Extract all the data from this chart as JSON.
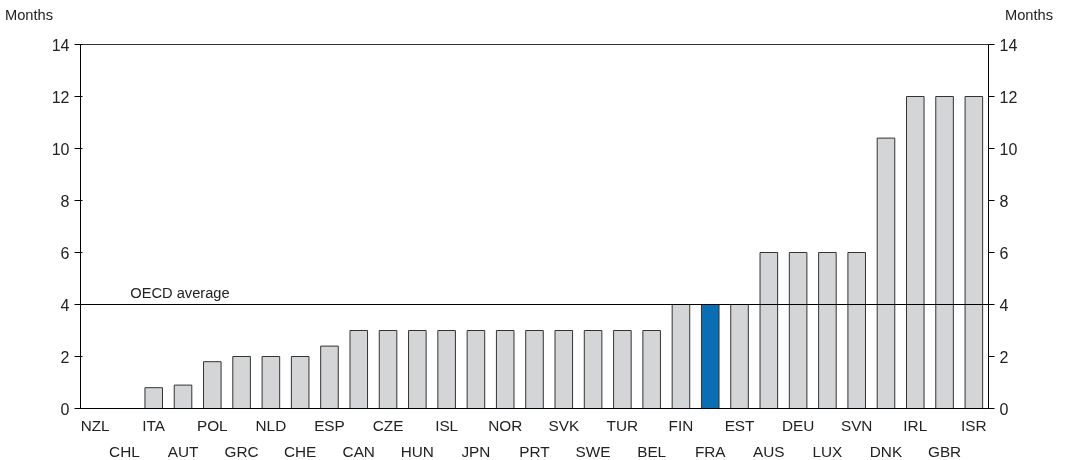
{
  "chart_data": {
    "type": "bar",
    "ylabel": "Months",
    "y2label": "Months",
    "categories": [
      "NZL",
      "CHL",
      "ITA",
      "AUT",
      "POL",
      "GRC",
      "NLD",
      "CHE",
      "ESP",
      "CAN",
      "CZE",
      "HUN",
      "ISL",
      "JPN",
      "NOR",
      "PRT",
      "SVK",
      "SWE",
      "TUR",
      "BEL",
      "FIN",
      "FRA",
      "EST",
      "AUS",
      "DEU",
      "LUX",
      "SVN",
      "DNK",
      "IRL",
      "GBR",
      "ISR"
    ],
    "values": [
      0,
      0,
      0.8,
      0.9,
      1.8,
      2,
      2,
      2,
      2.4,
      3,
      3,
      3,
      3,
      3,
      3,
      3,
      3,
      3,
      3,
      3,
      4,
      4,
      4,
      6,
      6,
      6,
      6,
      10.4,
      12,
      12,
      12
    ],
    "colors": [
      "#d4d5d7",
      "#d4d5d7",
      "#d4d5d7",
      "#d4d5d7",
      "#d4d5d7",
      "#d4d5d7",
      "#d4d5d7",
      "#d4d5d7",
      "#d4d5d7",
      "#d4d5d7",
      "#d4d5d7",
      "#d4d5d7",
      "#d4d5d7",
      "#d4d5d7",
      "#d4d5d7",
      "#d4d5d7",
      "#d4d5d7",
      "#d4d5d7",
      "#d4d5d7",
      "#d4d5d7",
      "#d4d5d7",
      "#0a6eb4",
      "#d4d5d7",
      "#d4d5d7",
      "#d4d5d7",
      "#d4d5d7",
      "#d4d5d7",
      "#d4d5d7",
      "#d4d5d7",
      "#d4d5d7",
      "#d4d5d7"
    ],
    "ylim": [
      0,
      14
    ],
    "yticks": [
      0,
      2,
      4,
      6,
      8,
      10,
      12,
      14
    ],
    "y2lim": [
      0,
      14
    ],
    "y2ticks": [
      0,
      2,
      4,
      6,
      8,
      10,
      12,
      14
    ],
    "ref_lines": [
      {
        "axis": "y",
        "value": 4,
        "label": "OECD average",
        "color": "#000000"
      }
    ],
    "grid": false
  }
}
